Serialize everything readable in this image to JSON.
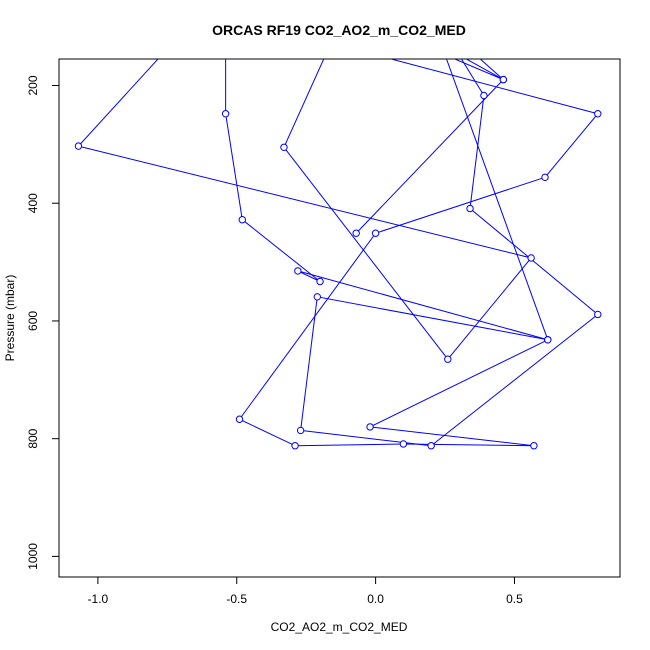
{
  "chart_data": {
    "type": "line",
    "title": "ORCAS RF19 CO2_AO2_m_CO2_MED",
    "xlabel": "CO2_AO2_m_CO2_MED",
    "ylabel": "Pressure (mbar)",
    "xlim": [
      -1.14,
      0.88
    ],
    "ylim": [
      1035,
      155
    ],
    "y_reversed": true,
    "x_ticks": [
      -1.0,
      -0.5,
      0.0,
      0.5
    ],
    "x_tick_labels": [
      "-1.0",
      "-0.5",
      "0.0",
      "0.5"
    ],
    "y_ticks": [
      200,
      400,
      600,
      800,
      1000
    ],
    "y_tick_labels": [
      "200",
      "400",
      "600",
      "800",
      "1000"
    ],
    "grid": false,
    "legend": "none",
    "series": [
      {
        "color": "#0000ff",
        "marker": "open-circle",
        "points": [
          {
            "x": -0.77,
            "y": 148,
            "marker": false
          },
          {
            "x": -1.07,
            "y": 303
          },
          {
            "x": 0.56,
            "y": 493
          },
          {
            "x": 0.26,
            "y": 665
          },
          {
            "x": -0.33,
            "y": 305
          },
          {
            "x": -0.18,
            "y": 148,
            "marker": false
          },
          {
            "x": -0.54,
            "y": 148,
            "marker": false
          },
          {
            "x": -0.54,
            "y": 248
          },
          {
            "x": -0.48,
            "y": 428
          },
          {
            "x": -0.2,
            "y": 533
          },
          {
            "x": -0.28,
            "y": 515
          },
          {
            "x": 0.62,
            "y": 632
          },
          {
            "x": -0.21,
            "y": 559
          },
          {
            "x": -0.27,
            "y": 786
          },
          {
            "x": 0.2,
            "y": 812
          },
          {
            "x": 0.8,
            "y": 589
          },
          {
            "x": 0.34,
            "y": 409
          },
          {
            "x": 0.39,
            "y": 217
          },
          {
            "x": 0.3,
            "y": 148,
            "marker": false
          },
          {
            "x": 0.46,
            "y": 190
          },
          {
            "x": 0.36,
            "y": 148,
            "marker": false
          },
          {
            "x": 0.0,
            "y": 148,
            "marker": false
          },
          {
            "x": 0.8,
            "y": 248
          },
          {
            "x": 0.61,
            "y": 356
          },
          {
            "x": 0.0,
            "y": 451
          },
          {
            "x": -0.49,
            "y": 767
          },
          {
            "x": -0.29,
            "y": 812
          },
          {
            "x": 0.1,
            "y": 809
          },
          {
            "x": 0.57,
            "y": 812
          },
          {
            "x": -0.02,
            "y": 780
          },
          {
            "x": 0.62,
            "y": 632
          },
          {
            "x": 0.25,
            "y": 148,
            "marker": false
          },
          {
            "x": 0.46,
            "y": 190
          },
          {
            "x": -0.07,
            "y": 451
          }
        ]
      }
    ]
  }
}
